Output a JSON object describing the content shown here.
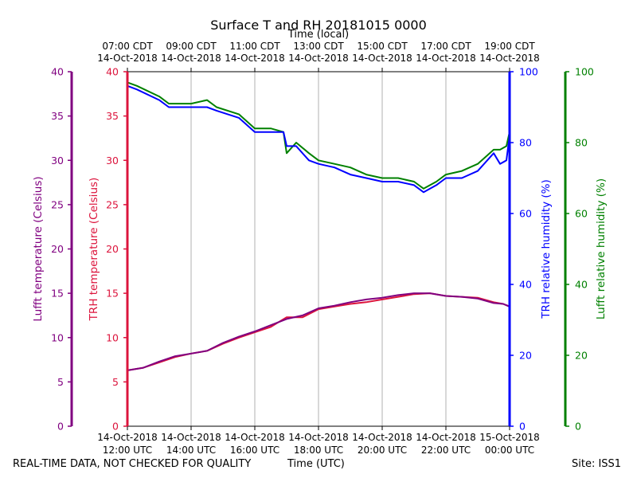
{
  "footer": {
    "quality_note": "REAL-TIME DATA, NOT CHECKED FOR QUALITY",
    "x_label_bottom": "Time (UTC)",
    "site": "Site: ISS1"
  },
  "chart_data": {
    "type": "line",
    "title": "Surface T and RH 20181015 0000",
    "xlabel": "Time (UTC)",
    "xlabel_top": "Time (local)",
    "x_unit": "hours UTC from 12:00 UTC 14-Oct-2018",
    "xlim": [
      0,
      12
    ],
    "x_ticks": [
      0,
      2,
      4,
      6,
      8,
      10,
      12
    ],
    "x_tick_labels_bottom": [
      [
        "14-Oct-2018",
        "12:00 UTC"
      ],
      [
        "14-Oct-2018",
        "14:00 UTC"
      ],
      [
        "14-Oct-2018",
        "16:00 UTC"
      ],
      [
        "14-Oct-2018",
        "18:00 UTC"
      ],
      [
        "14-Oct-2018",
        "20:00 UTC"
      ],
      [
        "14-Oct-2018",
        "22:00 UTC"
      ],
      [
        "15-Oct-2018",
        "00:00 UTC"
      ]
    ],
    "x_tick_labels_top": [
      [
        "07:00 CDT",
        "14-Oct-2018"
      ],
      [
        "09:00 CDT",
        "14-Oct-2018"
      ],
      [
        "11:00 CDT",
        "14-Oct-2018"
      ],
      [
        "13:00 CDT",
        "14-Oct-2018"
      ],
      [
        "15:00 CDT",
        "14-Oct-2018"
      ],
      [
        "17:00 CDT",
        "14-Oct-2018"
      ],
      [
        "19:00 CDT",
        "14-Oct-2018"
      ]
    ],
    "axes": {
      "lufft_temp": {
        "label": "Lufft temperature (Celsius)",
        "color": "#800080",
        "ylim": [
          0,
          40
        ],
        "ticks": [
          0,
          5,
          10,
          15,
          20,
          25,
          30,
          35,
          40
        ]
      },
      "trh_temp": {
        "label": "TRH temperature (Celsius)",
        "color": "#dc143c",
        "ylim": [
          0,
          40
        ],
        "ticks": [
          0,
          5,
          10,
          15,
          20,
          25,
          30,
          35,
          40
        ]
      },
      "trh_rh": {
        "label": "TRH relative humidity (%)",
        "color": "#0000ff",
        "ylim": [
          0,
          100
        ],
        "ticks": [
          0,
          20,
          40,
          60,
          80,
          100
        ]
      },
      "lufft_rh": {
        "label": "Lufft relative humidity (%)",
        "color": "#008000",
        "ylim": [
          0,
          100
        ],
        "ticks": [
          0,
          20,
          40,
          60,
          80,
          100
        ]
      }
    },
    "series": [
      {
        "name": "Lufft relative humidity",
        "axis": "lufft_rh",
        "color": "#008000",
        "x": [
          0,
          0.3,
          1.0,
          1.3,
          2.0,
          2.5,
          2.8,
          3.5,
          4.0,
          4.5,
          4.9,
          5.0,
          5.3,
          5.7,
          6.0,
          6.5,
          7.0,
          7.5,
          8.0,
          8.5,
          9.0,
          9.3,
          9.7,
          10.0,
          10.5,
          11.0,
          11.5,
          11.7,
          11.9,
          12.0
        ],
        "y": [
          97,
          96,
          93,
          91,
          91,
          92,
          90,
          88,
          84,
          84,
          83,
          77,
          80,
          77,
          75,
          74,
          73,
          71,
          70,
          70,
          69,
          67,
          69,
          71,
          72,
          74,
          78,
          78,
          79,
          83
        ]
      },
      {
        "name": "TRH relative humidity",
        "axis": "trh_rh",
        "color": "#0000ff",
        "x": [
          0,
          0.3,
          1.0,
          1.3,
          2.0,
          2.5,
          2.8,
          3.5,
          4.0,
          4.5,
          4.9,
          5.0,
          5.3,
          5.7,
          6.0,
          6.5,
          7.0,
          7.5,
          8.0,
          8.5,
          9.0,
          9.3,
          9.7,
          10.0,
          10.5,
          11.0,
          11.5,
          11.7,
          11.9,
          12.0
        ],
        "y": [
          96,
          95,
          92,
          90,
          90,
          90,
          89,
          87,
          83,
          83,
          83,
          79,
          79,
          75,
          74,
          73,
          71,
          70,
          69,
          69,
          68,
          66,
          68,
          70,
          70,
          72,
          77,
          74,
          75,
          82
        ]
      },
      {
        "name": "TRH temperature",
        "axis": "trh_temp",
        "color": "#dc143c",
        "x": [
          0,
          0.5,
          1.0,
          1.5,
          2.0,
          2.5,
          3.0,
          3.5,
          4.0,
          4.5,
          5.0,
          5.5,
          6.0,
          6.5,
          7.0,
          7.5,
          8.0,
          8.5,
          9.0,
          9.5,
          10.0,
          10.5,
          11.0,
          11.5,
          11.8,
          12.0
        ],
        "y": [
          6.3,
          6.6,
          7.2,
          7.8,
          8.2,
          8.5,
          9.3,
          10.0,
          10.6,
          11.2,
          12.3,
          12.3,
          13.2,
          13.5,
          13.8,
          14.0,
          14.3,
          14.6,
          14.9,
          15.0,
          14.7,
          14.6,
          14.5,
          14.0,
          13.8,
          13.5
        ]
      },
      {
        "name": "Lufft temperature",
        "axis": "lufft_temp",
        "color": "#800080",
        "x": [
          0,
          0.5,
          1.0,
          1.5,
          2.0,
          2.5,
          3.0,
          3.5,
          4.0,
          4.5,
          5.0,
          5.5,
          6.0,
          6.5,
          7.0,
          7.5,
          8.0,
          8.5,
          9.0,
          9.5,
          10.0,
          10.5,
          11.0,
          11.5,
          11.8,
          12.0
        ],
        "y": [
          6.3,
          6.6,
          7.3,
          7.9,
          8.2,
          8.5,
          9.4,
          10.1,
          10.7,
          11.4,
          12.1,
          12.5,
          13.3,
          13.6,
          14.0,
          14.3,
          14.5,
          14.8,
          15.0,
          15.0,
          14.7,
          14.6,
          14.4,
          13.9,
          13.8,
          13.5
        ]
      }
    ]
  }
}
